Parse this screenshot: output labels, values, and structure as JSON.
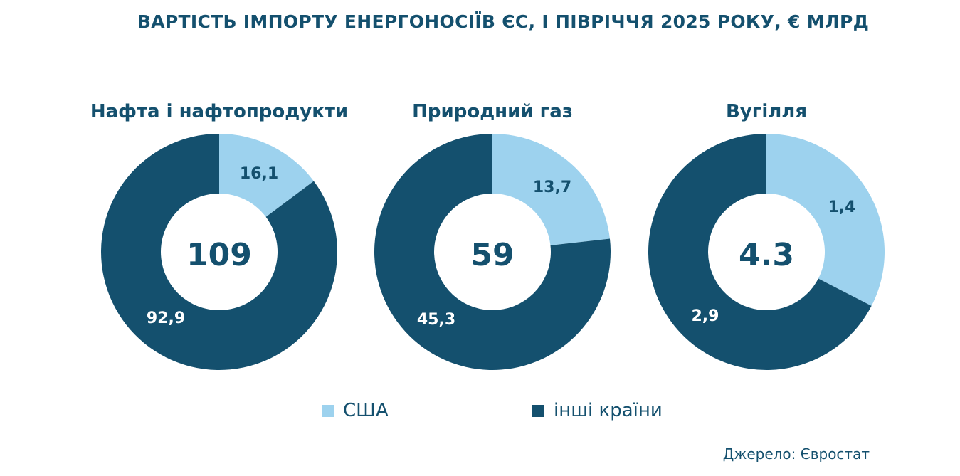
{
  "title": "ВАРТІСТЬ ІМПОРТУ ЕНЕРГОНОСІЇВ ЄС, І ПІВРІЧЧЯ 2025 РОКУ, € МЛРД",
  "colors": {
    "usa": "#9dd2ee",
    "other": "#14506e",
    "text": "#14506e"
  },
  "legend": [
    {
      "label": "США",
      "color": "#9dd2ee"
    },
    {
      "label": "інші країни",
      "color": "#14506e"
    }
  ],
  "source": "Джерело: Євростат",
  "chart_data": [
    {
      "type": "pie",
      "title": "Нафта і нафтопродукти",
      "center_label": "109",
      "series": [
        {
          "name": "США",
          "value": 16.1,
          "label": "16,1"
        },
        {
          "name": "інші країни",
          "value": 92.9,
          "label": "92,9"
        }
      ]
    },
    {
      "type": "pie",
      "title": "Природний газ",
      "center_label": "59",
      "series": [
        {
          "name": "США",
          "value": 13.7,
          "label": "13,7"
        },
        {
          "name": "інші країни",
          "value": 45.3,
          "label": "45,3"
        }
      ]
    },
    {
      "type": "pie",
      "title": "Вугілля",
      "center_label": "4.3",
      "series": [
        {
          "name": "США",
          "value": 1.4,
          "label": "1,4"
        },
        {
          "name": "інші країни",
          "value": 2.9,
          "label": "2,9"
        }
      ]
    }
  ]
}
